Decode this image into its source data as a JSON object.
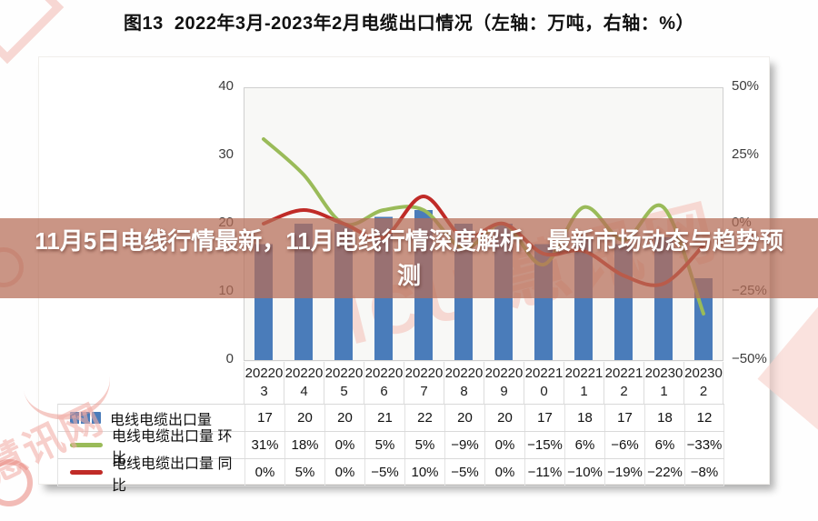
{
  "page": {
    "title": "图13  2022年3月-2023年2月电缆出口情况（左轴：万吨，右轴：%）"
  },
  "overlay": {
    "text": "11月5日电线行情最新，11月电线行情深度解析，最新市场动态与趋势预测"
  },
  "watermarks": {
    "center": "ICU 慧讯网",
    "corner_logo": "慧讯网"
  },
  "chart_data": {
    "type": "bar+line combo",
    "title": "图13 2022年3月-2023年2月电缆出口情况（左轴：万吨，右轴：%）",
    "categories": [
      "202203",
      "202204",
      "202205",
      "202206",
      "202207",
      "202208",
      "202209",
      "202210",
      "202211",
      "202212",
      "202301",
      "202302"
    ],
    "series": [
      {
        "name": "电线电缆出口量",
        "type": "bar",
        "axis": "left",
        "color": "#4a7cba",
        "values": [
          17,
          20,
          20,
          21,
          22,
          20,
          20,
          17,
          18,
          17,
          18,
          12
        ],
        "display": [
          "17",
          "20",
          "20",
          "21",
          "22",
          "20",
          "20",
          "17",
          "18",
          "17",
          "18",
          "12"
        ]
      },
      {
        "name": "电线电缆出口量 环比",
        "type": "line",
        "axis": "right",
        "color": "#9abb59",
        "values": [
          31,
          18,
          0,
          5,
          5,
          -9,
          0,
          -15,
          6,
          -6,
          6,
          -33
        ],
        "display": [
          "31%",
          "18%",
          "0%",
          "5%",
          "5%",
          "−9%",
          "0%",
          "−15%",
          "6%",
          "−6%",
          "6%",
          "−33%"
        ]
      },
      {
        "name": "电线电缆出口量 同比",
        "type": "line",
        "axis": "right",
        "color": "#c02b27",
        "values": [
          0,
          5,
          0,
          -5,
          10,
          -5,
          0,
          -11,
          -10,
          -19,
          -22,
          -8
        ],
        "display": [
          "0%",
          "5%",
          "0%",
          "−5%",
          "10%",
          "−5%",
          "0%",
          "−11%",
          "−10%",
          "−19%",
          "−22%",
          "−8%"
        ]
      }
    ],
    "left_axis": {
      "ticks": [
        "40",
        "30",
        "20",
        "10",
        "0"
      ],
      "range": [
        0,
        40
      ],
      "unit": "万吨"
    },
    "right_axis": {
      "ticks": [
        "50%",
        "25%",
        "0%",
        "−25%",
        "−50%"
      ],
      "range": [
        -50,
        50
      ],
      "unit": "%"
    },
    "legend_position": "bottom-table",
    "grid": false
  }
}
